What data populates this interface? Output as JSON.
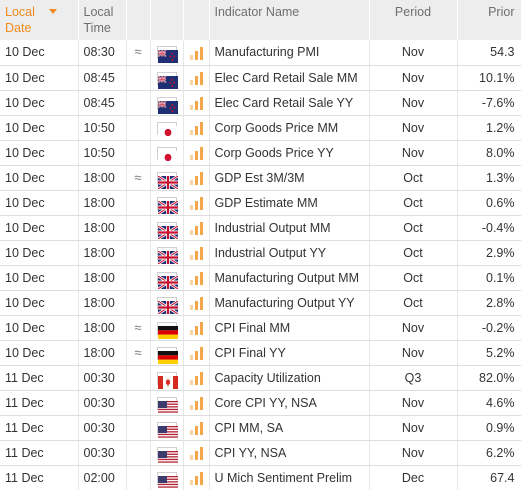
{
  "header": {
    "date_label_line1": "Local",
    "date_label_line2": "Date",
    "time_label_line1": "Local",
    "time_label_line2": "Time",
    "indicator_label": "Indicator Name",
    "period_label": "Period",
    "prior_label": "Prior",
    "sort_color": "#f08a1c"
  },
  "rows": [
    {
      "date": "10 Dec",
      "time": "08:30",
      "approx": "≈",
      "flag": "nz-flag",
      "indicator": "Manufacturing PMI",
      "period": "Nov",
      "prior": "54.3"
    },
    {
      "date": "10 Dec",
      "time": "08:45",
      "approx": "",
      "flag": "nz-flag",
      "indicator": "Elec Card Retail Sale MM",
      "period": "Nov",
      "prior": "10.1%"
    },
    {
      "date": "10 Dec",
      "time": "08:45",
      "approx": "",
      "flag": "nz-flag",
      "indicator": "Elec Card Retail Sale YY",
      "period": "Nov",
      "prior": "-7.6%"
    },
    {
      "date": "10 Dec",
      "time": "10:50",
      "approx": "",
      "flag": "jp-flag",
      "indicator": "Corp Goods Price MM",
      "period": "Nov",
      "prior": "1.2%"
    },
    {
      "date": "10 Dec",
      "time": "10:50",
      "approx": "",
      "flag": "jp-flag",
      "indicator": "Corp Goods Price YY",
      "period": "Nov",
      "prior": "8.0%"
    },
    {
      "date": "10 Dec",
      "time": "18:00",
      "approx": "≈",
      "flag": "uk-flag",
      "indicator": "GDP Est 3M/3M",
      "period": "Oct",
      "prior": "1.3%"
    },
    {
      "date": "10 Dec",
      "time": "18:00",
      "approx": "",
      "flag": "uk-flag",
      "indicator": "GDP Estimate MM",
      "period": "Oct",
      "prior": "0.6%"
    },
    {
      "date": "10 Dec",
      "time": "18:00",
      "approx": "",
      "flag": "uk-flag",
      "indicator": "Industrial Output MM",
      "period": "Oct",
      "prior": "-0.4%"
    },
    {
      "date": "10 Dec",
      "time": "18:00",
      "approx": "",
      "flag": "uk-flag",
      "indicator": "Industrial Output YY",
      "period": "Oct",
      "prior": "2.9%"
    },
    {
      "date": "10 Dec",
      "time": "18:00",
      "approx": "",
      "flag": "uk-flag",
      "indicator": "Manufacturing Output MM",
      "period": "Oct",
      "prior": "0.1%"
    },
    {
      "date": "10 Dec",
      "time": "18:00",
      "approx": "",
      "flag": "uk-flag",
      "indicator": "Manufacturing Output YY",
      "period": "Oct",
      "prior": "2.8%"
    },
    {
      "date": "10 Dec",
      "time": "18:00",
      "approx": "≈",
      "flag": "de-flag",
      "indicator": "CPI Final MM",
      "period": "Nov",
      "prior": "-0.2%"
    },
    {
      "date": "10 Dec",
      "time": "18:00",
      "approx": "≈",
      "flag": "de-flag",
      "indicator": "CPI Final YY",
      "period": "Nov",
      "prior": "5.2%"
    },
    {
      "date": "11 Dec",
      "time": "00:30",
      "approx": "",
      "flag": "ca-flag",
      "indicator": "Capacity Utilization",
      "period": "Q3",
      "prior": "82.0%"
    },
    {
      "date": "11 Dec",
      "time": "00:30",
      "approx": "",
      "flag": "us-flag",
      "indicator": "Core CPI YY, NSA",
      "period": "Nov",
      "prior": "4.6%"
    },
    {
      "date": "11 Dec",
      "time": "00:30",
      "approx": "",
      "flag": "us-flag",
      "indicator": "CPI MM, SA",
      "period": "Nov",
      "prior": "0.9%"
    },
    {
      "date": "11 Dec",
      "time": "00:30",
      "approx": "",
      "flag": "us-flag",
      "indicator": "CPI YY, NSA",
      "period": "Nov",
      "prior": "6.2%"
    },
    {
      "date": "11 Dec",
      "time": "02:00",
      "approx": "",
      "flag": "us-flag",
      "indicator": "U Mich Sentiment Prelim",
      "period": "Dec",
      "prior": "67.4"
    }
  ]
}
